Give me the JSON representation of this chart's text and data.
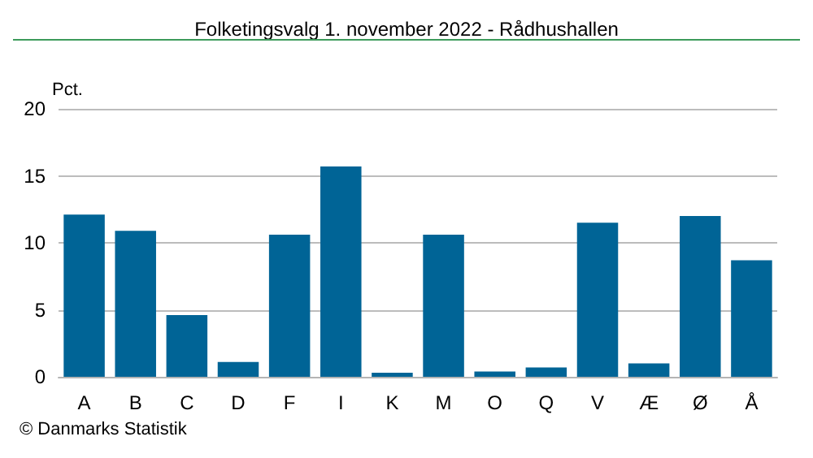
{
  "chart_data": {
    "type": "bar",
    "title": "Folketingsvalg 1. november 2022 - Rådhushallen",
    "ylabel": "Pct.",
    "categories": [
      "A",
      "B",
      "C",
      "D",
      "F",
      "I",
      "K",
      "M",
      "O",
      "Q",
      "V",
      "Æ",
      "Ø",
      "Å"
    ],
    "values": [
      12.1,
      10.9,
      4.6,
      1.1,
      10.6,
      15.7,
      0.3,
      10.6,
      0.4,
      0.7,
      11.5,
      1.0,
      12.0,
      8.7
    ],
    "color": "#006496",
    "ylim": [
      0,
      20
    ],
    "yticks": [
      0,
      5,
      10,
      15,
      20
    ],
    "grid": "y",
    "annotations": [
      "© Danmarks Statistik"
    ]
  }
}
